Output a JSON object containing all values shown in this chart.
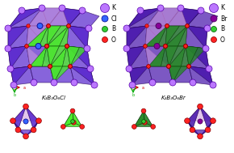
{
  "background_color": "#ffffff",
  "left_crystal_label": "K₃B₃O₆Cl",
  "right_crystal_label": "K₃B₃O₆Br",
  "colors": {
    "K": "#bb77ff",
    "Cl": "#3366ff",
    "Br": "#880099",
    "B": "#33cc33",
    "O": "#ff2222",
    "purple_poly": "#5522cc",
    "pink_poly": "#cc99dd",
    "green_light": "#44ee22",
    "green_dark": "#228822",
    "purple_dark": "#4411aa"
  }
}
